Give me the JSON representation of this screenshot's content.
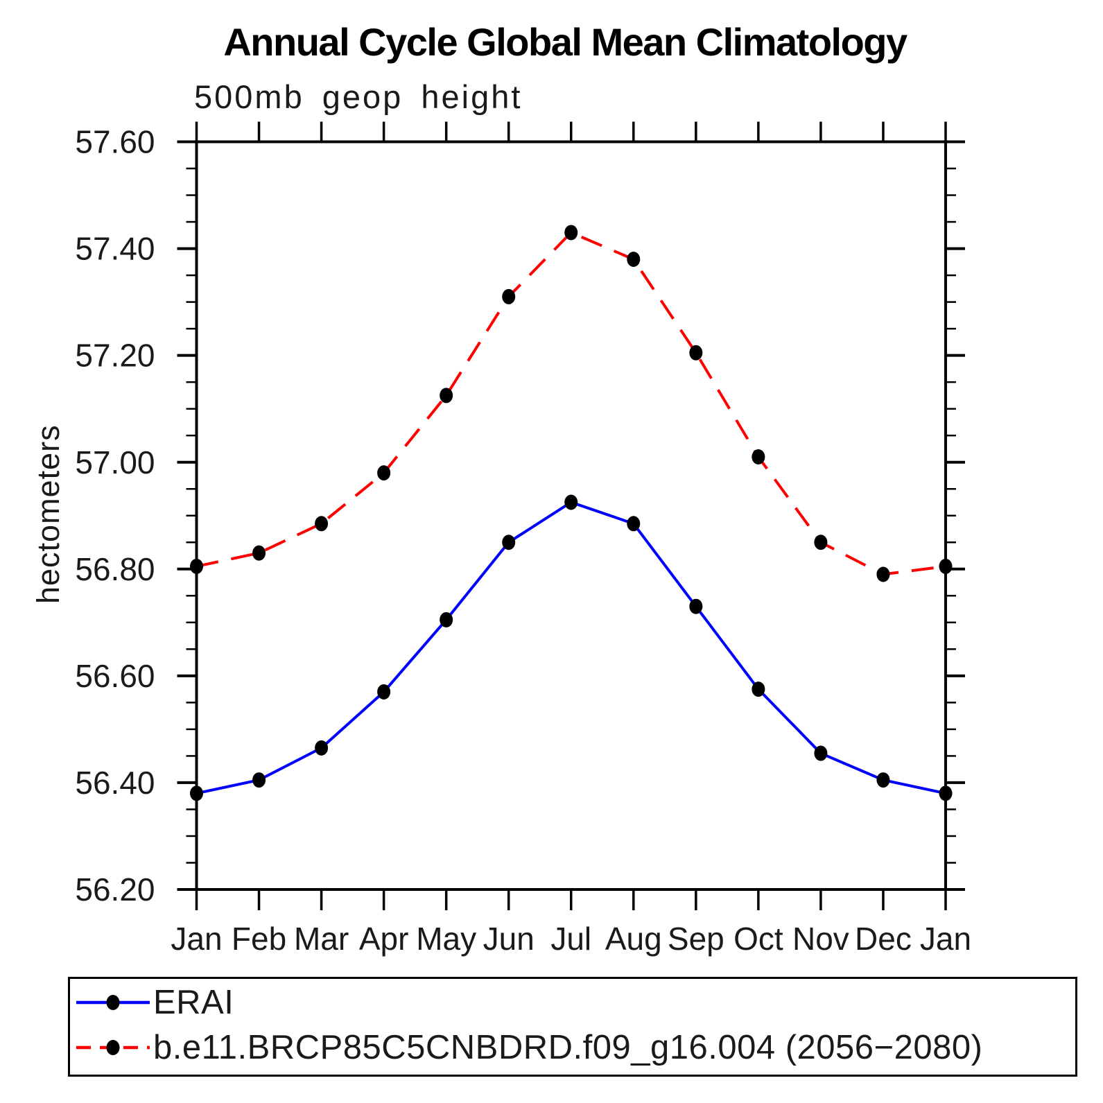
{
  "title": "Annual Cycle Global Mean Climatology",
  "subtitle": "500mb geop height",
  "y_axis": {
    "label": "hectometers",
    "tick_labels": [
      "57.60",
      "57.40",
      "57.20",
      "57.00",
      "56.80",
      "56.60",
      "56.40",
      "56.20"
    ]
  },
  "x_axis": {
    "tick_labels": [
      "Jan",
      "Feb",
      "Mar",
      "Apr",
      "May",
      "Jun",
      "Jul",
      "Aug",
      "Sep",
      "Oct",
      "Nov",
      "Dec",
      "Jan"
    ]
  },
  "legend": {
    "items": [
      {
        "label": "ERAI",
        "color": "#0000ff",
        "line_style": "solid",
        "marker": "filled-circle",
        "marker_color": "#000000"
      },
      {
        "label": "b.e11.BRCP85C5CNBDRD.f09_g16.004 (2056−2080)",
        "color": "#ff0000",
        "line_style": "dashed",
        "marker": "filled-circle",
        "marker_color": "#000000"
      }
    ]
  },
  "chart_data": {
    "type": "line",
    "title": "Annual Cycle Global Mean Climatology",
    "subtitle": "500mb geop height",
    "ylabel": "hectometers",
    "categories": [
      "Jan",
      "Feb",
      "Mar",
      "Apr",
      "May",
      "Jun",
      "Jul",
      "Aug",
      "Sep",
      "Oct",
      "Nov",
      "Dec",
      "Jan"
    ],
    "series": [
      {
        "name": "ERAI",
        "color": "#0000ff",
        "line_style": "solid",
        "marker": "filled-circle",
        "marker_color": "#000000",
        "values": [
          56.38,
          56.405,
          56.465,
          56.57,
          56.705,
          56.85,
          56.925,
          56.885,
          56.73,
          56.575,
          56.455,
          56.405,
          56.38
        ]
      },
      {
        "name": "b.e11.BRCP85C5CNBDRD.f09_g16.004 (2056−2080)",
        "color": "#ff0000",
        "line_style": "dashed",
        "marker": "filled-circle",
        "marker_color": "#000000",
        "values": [
          56.805,
          56.83,
          56.885,
          56.98,
          57.125,
          57.31,
          57.43,
          57.38,
          57.205,
          57.01,
          56.85,
          56.79,
          56.805
        ]
      }
    ],
    "ylim": [
      56.2,
      57.6
    ],
    "ytick_step": 0.2,
    "yminor_step": 0.05,
    "grid": false,
    "legend_position": "bottom-left-box"
  }
}
